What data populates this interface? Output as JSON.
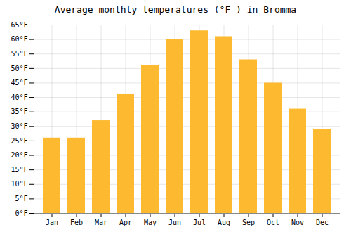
{
  "chart_data": {
    "type": "bar",
    "title": "Average monthly temperatures (°F ) in Bromma",
    "categories": [
      "Jan",
      "Feb",
      "Mar",
      "Apr",
      "May",
      "Jun",
      "Jul",
      "Aug",
      "Sep",
      "Oct",
      "Nov",
      "Dec"
    ],
    "values": [
      26,
      26,
      32,
      41,
      51,
      60,
      63,
      61,
      53,
      45,
      36,
      29
    ],
    "color": "#FDB930",
    "ylim": [
      0,
      65
    ],
    "yticks": [
      {
        "value": 0,
        "label": "0°F"
      },
      {
        "value": 5,
        "label": "5°F"
      },
      {
        "value": 10,
        "label": "10°F"
      },
      {
        "value": 15,
        "label": "15°F"
      },
      {
        "value": 20,
        "label": "20°F"
      },
      {
        "value": 25,
        "label": "25°F"
      },
      {
        "value": 30,
        "label": "30°F"
      },
      {
        "value": 35,
        "label": "35°F"
      },
      {
        "value": 40,
        "label": "40°F"
      },
      {
        "value": 45,
        "label": "45°F"
      },
      {
        "value": 50,
        "label": "50°F"
      },
      {
        "value": 55,
        "label": "55°F"
      },
      {
        "value": 60,
        "label": "60°F"
      },
      {
        "value": 65,
        "label": "65°F"
      }
    ],
    "grid": true
  }
}
